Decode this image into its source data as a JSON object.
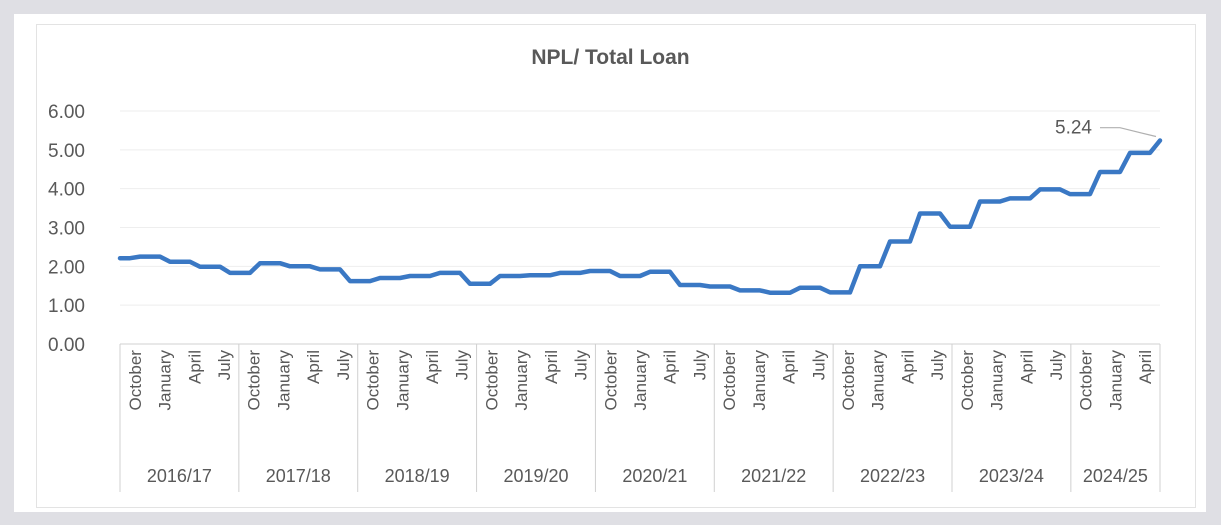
{
  "colors": {
    "background": "#dfdfe4",
    "panel": "#ffffff",
    "line": "#3a78c4",
    "text": "#595959",
    "grid": "#eeeeee"
  },
  "chart_data": {
    "type": "line",
    "title": "NPL/ Total Loan",
    "xlabel": "",
    "ylabel": "",
    "ylim": [
      0,
      6
    ],
    "yticks": [
      "0.00",
      "1.00",
      "2.00",
      "3.00",
      "4.00",
      "5.00",
      "6.00"
    ],
    "grid": true,
    "legend": "none",
    "groups": [
      {
        "label": "2016/17",
        "months": [
          "October",
          "January",
          "April",
          "July"
        ]
      },
      {
        "label": "2017/18",
        "months": [
          "October",
          "January",
          "April",
          "July"
        ]
      },
      {
        "label": "2018/19",
        "months": [
          "October",
          "January",
          "April",
          "July"
        ]
      },
      {
        "label": "2019/20",
        "months": [
          "October",
          "January",
          "April",
          "July"
        ]
      },
      {
        "label": "2020/21",
        "months": [
          "October",
          "January",
          "April",
          "July"
        ]
      },
      {
        "label": "2021/22",
        "months": [
          "October",
          "January",
          "April",
          "July"
        ]
      },
      {
        "label": "2022/23",
        "months": [
          "October",
          "January",
          "April",
          "July"
        ]
      },
      {
        "label": "2023/24",
        "months": [
          "October",
          "January",
          "April",
          "July"
        ]
      },
      {
        "label": "2024/25",
        "months": [
          "October",
          "January",
          "April"
        ]
      }
    ],
    "series": [
      {
        "values": [
          2.21,
          2.21,
          2.25,
          2.25,
          2.25,
          2.12,
          2.12,
          2.12,
          1.99,
          1.99,
          1.99,
          1.83,
          1.83,
          1.83,
          2.08,
          2.08,
          2.08,
          2.0,
          2.0,
          2.0,
          1.92,
          1.92,
          1.92,
          1.62,
          1.62,
          1.62,
          1.7,
          1.7,
          1.7,
          1.75,
          1.75,
          1.75,
          1.83,
          1.83,
          1.83,
          1.55,
          1.55,
          1.55,
          1.75,
          1.75,
          1.75,
          1.77,
          1.77,
          1.77,
          1.83,
          1.83,
          1.83,
          1.88,
          1.88,
          1.88,
          1.75,
          1.75,
          1.75,
          1.86,
          1.86,
          1.86,
          1.52,
          1.52,
          1.52,
          1.48,
          1.48,
          1.48,
          1.38,
          1.38,
          1.38,
          1.32,
          1.32,
          1.32,
          1.45,
          1.45,
          1.45,
          1.33,
          1.33,
          1.33,
          2.0,
          2.0,
          2.0,
          2.64,
          2.64,
          2.64,
          3.36,
          3.36,
          3.36,
          3.02,
          3.02,
          3.02,
          3.67,
          3.67,
          3.67,
          3.75,
          3.75,
          3.75,
          3.98,
          3.98,
          3.98,
          3.86,
          3.86,
          3.86,
          4.43,
          4.43,
          4.43,
          4.92,
          4.92,
          4.92,
          5.24
        ]
      }
    ],
    "annotations": [
      {
        "text": "5.24",
        "point": "last"
      }
    ]
  }
}
